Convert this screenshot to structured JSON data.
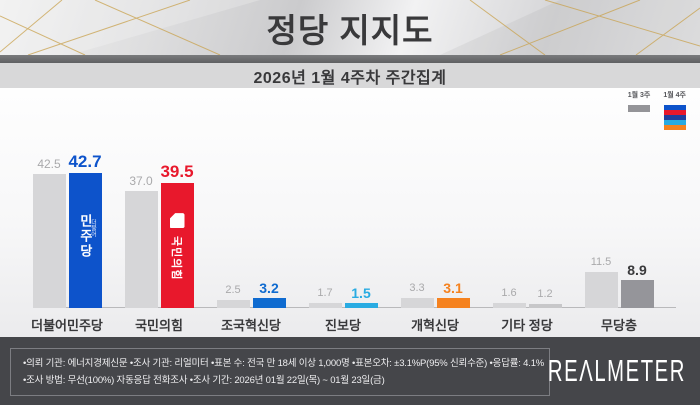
{
  "header": {
    "title": "정당 지지도"
  },
  "subtitle": "2026년 1월 4주차 주간집계",
  "legend": {
    "prev_label": "1월 3주",
    "curr_label": "1월 4주",
    "prev_color": "#949498",
    "curr_stripes": [
      "#0d53cb",
      "#e8182c",
      "#1e3f9e",
      "#29abe2",
      "#f5821f"
    ]
  },
  "chart_data": {
    "type": "bar",
    "title": "정당 지지도",
    "subtitle": "2026년 1월 4주차 주간집계",
    "categories": [
      "더불어민주당",
      "국민의힘",
      "조국혁신당",
      "진보당",
      "개혁신당",
      "기타 정당",
      "무당층"
    ],
    "series": [
      {
        "name": "1월 3주",
        "values": [
          42.5,
          37.0,
          2.5,
          1.7,
          3.3,
          1.6,
          11.5
        ],
        "labels": [
          "42.5",
          "37.0",
          "2.5",
          "1.7",
          "3.3",
          "1.6",
          "11.5"
        ]
      },
      {
        "name": "1월 4주",
        "values": [
          42.7,
          39.5,
          3.2,
          1.5,
          3.1,
          1.2,
          8.9
        ],
        "labels": [
          "42.7",
          "39.5",
          "3.2",
          "1.5",
          "3.1",
          "1.2",
          "8.9"
        ]
      }
    ],
    "prev_bar_color": "#d6d6d8",
    "bar_colors": [
      "#0d53cb",
      "#e8182c",
      "#0f6bd0",
      "#29abe2",
      "#f5821f",
      "#c7c7c9",
      "#95959a"
    ],
    "value_label_colors": [
      "#0d53cb",
      "#e8182c",
      "#0f6bd0",
      "#29abe2",
      "#f5821f",
      "#ababad",
      "#3a3a3c"
    ],
    "muted_current": [
      false,
      false,
      false,
      false,
      false,
      true,
      false
    ],
    "bar_logos": [
      {
        "main": "민주당",
        "small": "더불어"
      },
      {
        "main": "국민의힘",
        "shape": "rounded-square"
      },
      null,
      null,
      null,
      null,
      null
    ],
    "ylim": [
      0,
      45
    ],
    "grid": false,
    "legend_position": "top-right"
  },
  "footer": {
    "line1": "•의뢰 기관: 에너지경제신문  •조사 기관: 리얼미터 •표본 수: 전국 만 18세 이상 1,000명 •표본오차: ±3.1%P(95% 신뢰수준) •응답률: 4.1%",
    "line2": "•조사 방법: 무선(100%) 자동응답 전화조사 •조사 기간: 2026년 01월 22일(목) ~ 01월 23일(금)",
    "logo": "REΛLMETER"
  }
}
